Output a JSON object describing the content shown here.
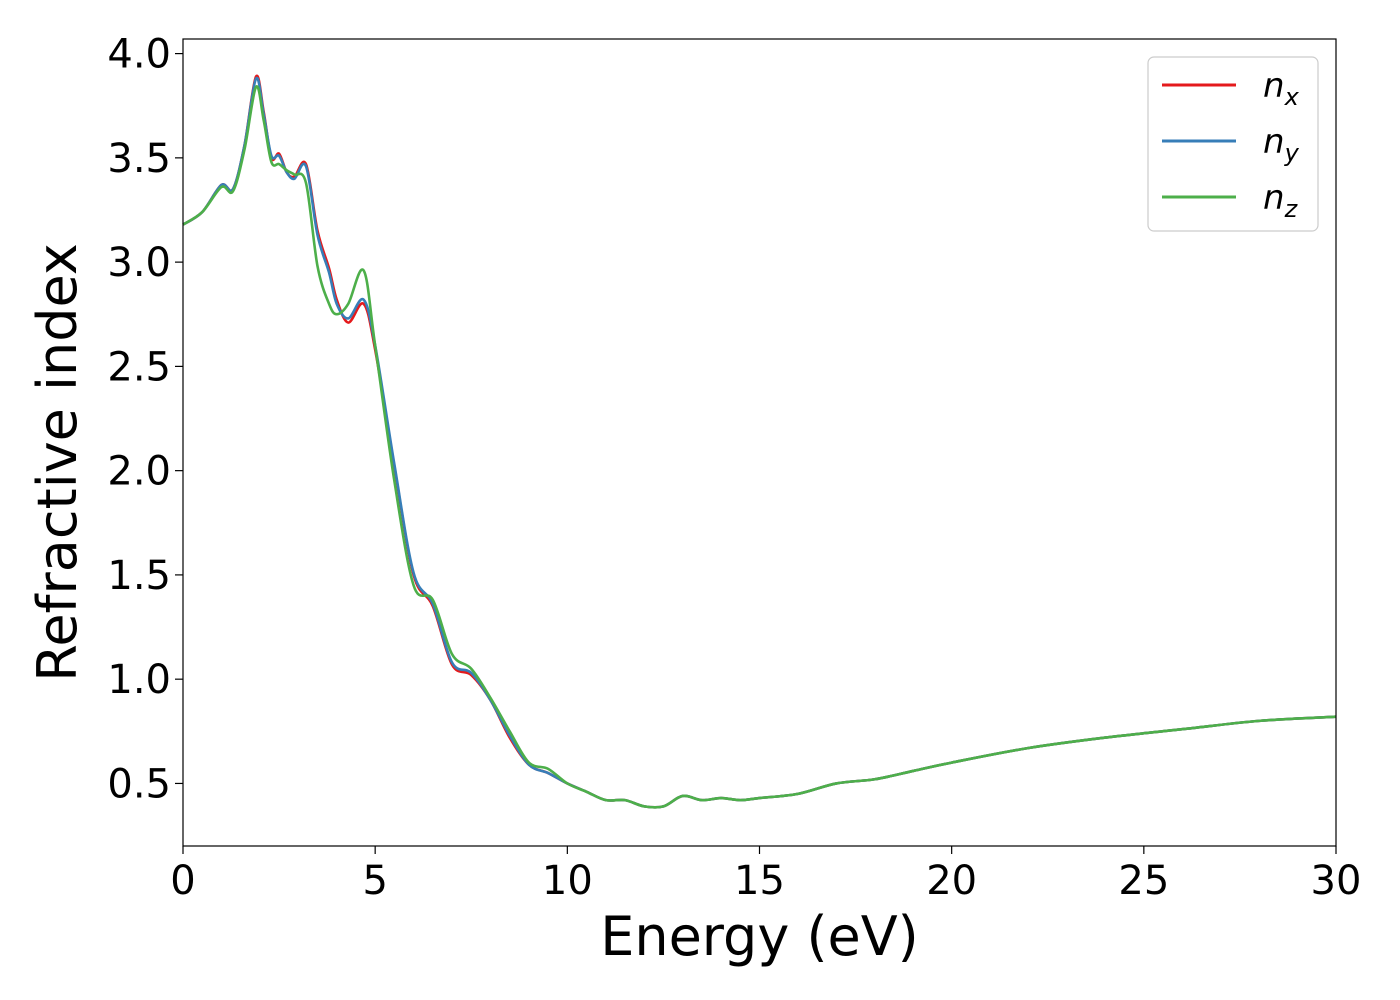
{
  "chart_data": {
    "type": "line",
    "xlabel": "Energy (eV)",
    "ylabel": "Refractive index",
    "xlim": [
      0,
      30
    ],
    "ylim": [
      0.2,
      4.07
    ],
    "xticks": [
      0,
      5,
      10,
      15,
      20,
      25,
      30
    ],
    "xtick_labels": [
      "0",
      "5",
      "10",
      "15",
      "20",
      "25",
      "30"
    ],
    "yticks": [
      0.5,
      1.0,
      1.5,
      2.0,
      2.5,
      3.0,
      3.5,
      4.0
    ],
    "ytick_labels": [
      "0.5",
      "1.0",
      "1.5",
      "2.0",
      "2.5",
      "3.0",
      "3.5",
      "4.0"
    ],
    "grid": false,
    "legend_position": "top-right",
    "series": [
      {
        "name": "n",
        "subscript": "x",
        "color": "#e41a1c",
        "x": [
          0,
          0.5,
          1.0,
          1.3,
          1.6,
          1.9,
          2.1,
          2.3,
          2.5,
          2.7,
          2.9,
          3.2,
          3.5,
          3.8,
          4.0,
          4.3,
          4.7,
          5.0,
          5.5,
          6.0,
          6.5,
          7.0,
          7.5,
          8.0,
          8.5,
          9.0,
          9.5,
          10.0,
          10.5,
          11.0,
          11.5,
          12.0,
          12.5,
          13.0,
          13.5,
          14.0,
          14.5,
          15.0,
          16.0,
          17.0,
          18.0,
          19.0,
          20.0,
          22.0,
          24.0,
          26.0,
          28.0,
          30.0
        ],
        "y": [
          3.18,
          3.24,
          3.37,
          3.35,
          3.56,
          3.89,
          3.72,
          3.5,
          3.52,
          3.43,
          3.41,
          3.47,
          3.15,
          2.97,
          2.82,
          2.71,
          2.8,
          2.58,
          2.02,
          1.5,
          1.35,
          1.07,
          1.02,
          0.9,
          0.72,
          0.59,
          0.55,
          0.5,
          0.46,
          0.42,
          0.42,
          0.39,
          0.39,
          0.44,
          0.42,
          0.43,
          0.42,
          0.43,
          0.45,
          0.5,
          0.52,
          0.56,
          0.6,
          0.67,
          0.72,
          0.76,
          0.8,
          0.82
        ]
      },
      {
        "name": "n",
        "subscript": "y",
        "color": "#377eb8",
        "x": [
          0,
          0.5,
          1.0,
          1.3,
          1.6,
          1.9,
          2.1,
          2.3,
          2.5,
          2.7,
          2.9,
          3.2,
          3.5,
          3.8,
          4.0,
          4.3,
          4.7,
          5.0,
          5.5,
          6.0,
          6.5,
          7.0,
          7.5,
          8.0,
          8.5,
          9.0,
          9.5,
          10.0,
          10.5,
          11.0,
          11.5,
          12.0,
          12.5,
          13.0,
          13.5,
          14.0,
          14.5,
          15.0,
          16.0,
          17.0,
          18.0,
          19.0,
          20.0,
          22.0,
          24.0,
          26.0,
          28.0,
          30.0
        ],
        "y": [
          3.18,
          3.24,
          3.37,
          3.35,
          3.56,
          3.88,
          3.71,
          3.51,
          3.51,
          3.43,
          3.4,
          3.46,
          3.13,
          2.95,
          2.8,
          2.73,
          2.82,
          2.6,
          2.03,
          1.51,
          1.36,
          1.08,
          1.03,
          0.9,
          0.73,
          0.59,
          0.55,
          0.5,
          0.46,
          0.42,
          0.42,
          0.39,
          0.39,
          0.44,
          0.42,
          0.43,
          0.42,
          0.43,
          0.45,
          0.5,
          0.52,
          0.56,
          0.6,
          0.67,
          0.72,
          0.76,
          0.8,
          0.82
        ]
      },
      {
        "name": "n",
        "subscript": "z",
        "color": "#4daf4a",
        "x": [
          0,
          0.5,
          1.0,
          1.3,
          1.6,
          1.9,
          2.1,
          2.3,
          2.5,
          2.7,
          2.9,
          3.2,
          3.5,
          3.8,
          4.0,
          4.3,
          4.7,
          5.0,
          5.5,
          6.0,
          6.5,
          7.0,
          7.5,
          8.0,
          8.5,
          9.0,
          9.5,
          10.0,
          10.5,
          11.0,
          11.5,
          12.0,
          12.5,
          13.0,
          13.5,
          14.0,
          14.5,
          15.0,
          16.0,
          17.0,
          18.0,
          19.0,
          20.0,
          22.0,
          24.0,
          26.0,
          28.0,
          30.0
        ],
        "y": [
          3.18,
          3.24,
          3.36,
          3.34,
          3.54,
          3.84,
          3.68,
          3.48,
          3.47,
          3.44,
          3.42,
          3.38,
          2.98,
          2.8,
          2.75,
          2.8,
          2.96,
          2.6,
          1.95,
          1.45,
          1.38,
          1.12,
          1.05,
          0.91,
          0.75,
          0.6,
          0.57,
          0.5,
          0.46,
          0.42,
          0.42,
          0.39,
          0.39,
          0.44,
          0.42,
          0.43,
          0.42,
          0.43,
          0.45,
          0.5,
          0.52,
          0.56,
          0.6,
          0.67,
          0.72,
          0.76,
          0.8,
          0.82
        ]
      }
    ]
  }
}
